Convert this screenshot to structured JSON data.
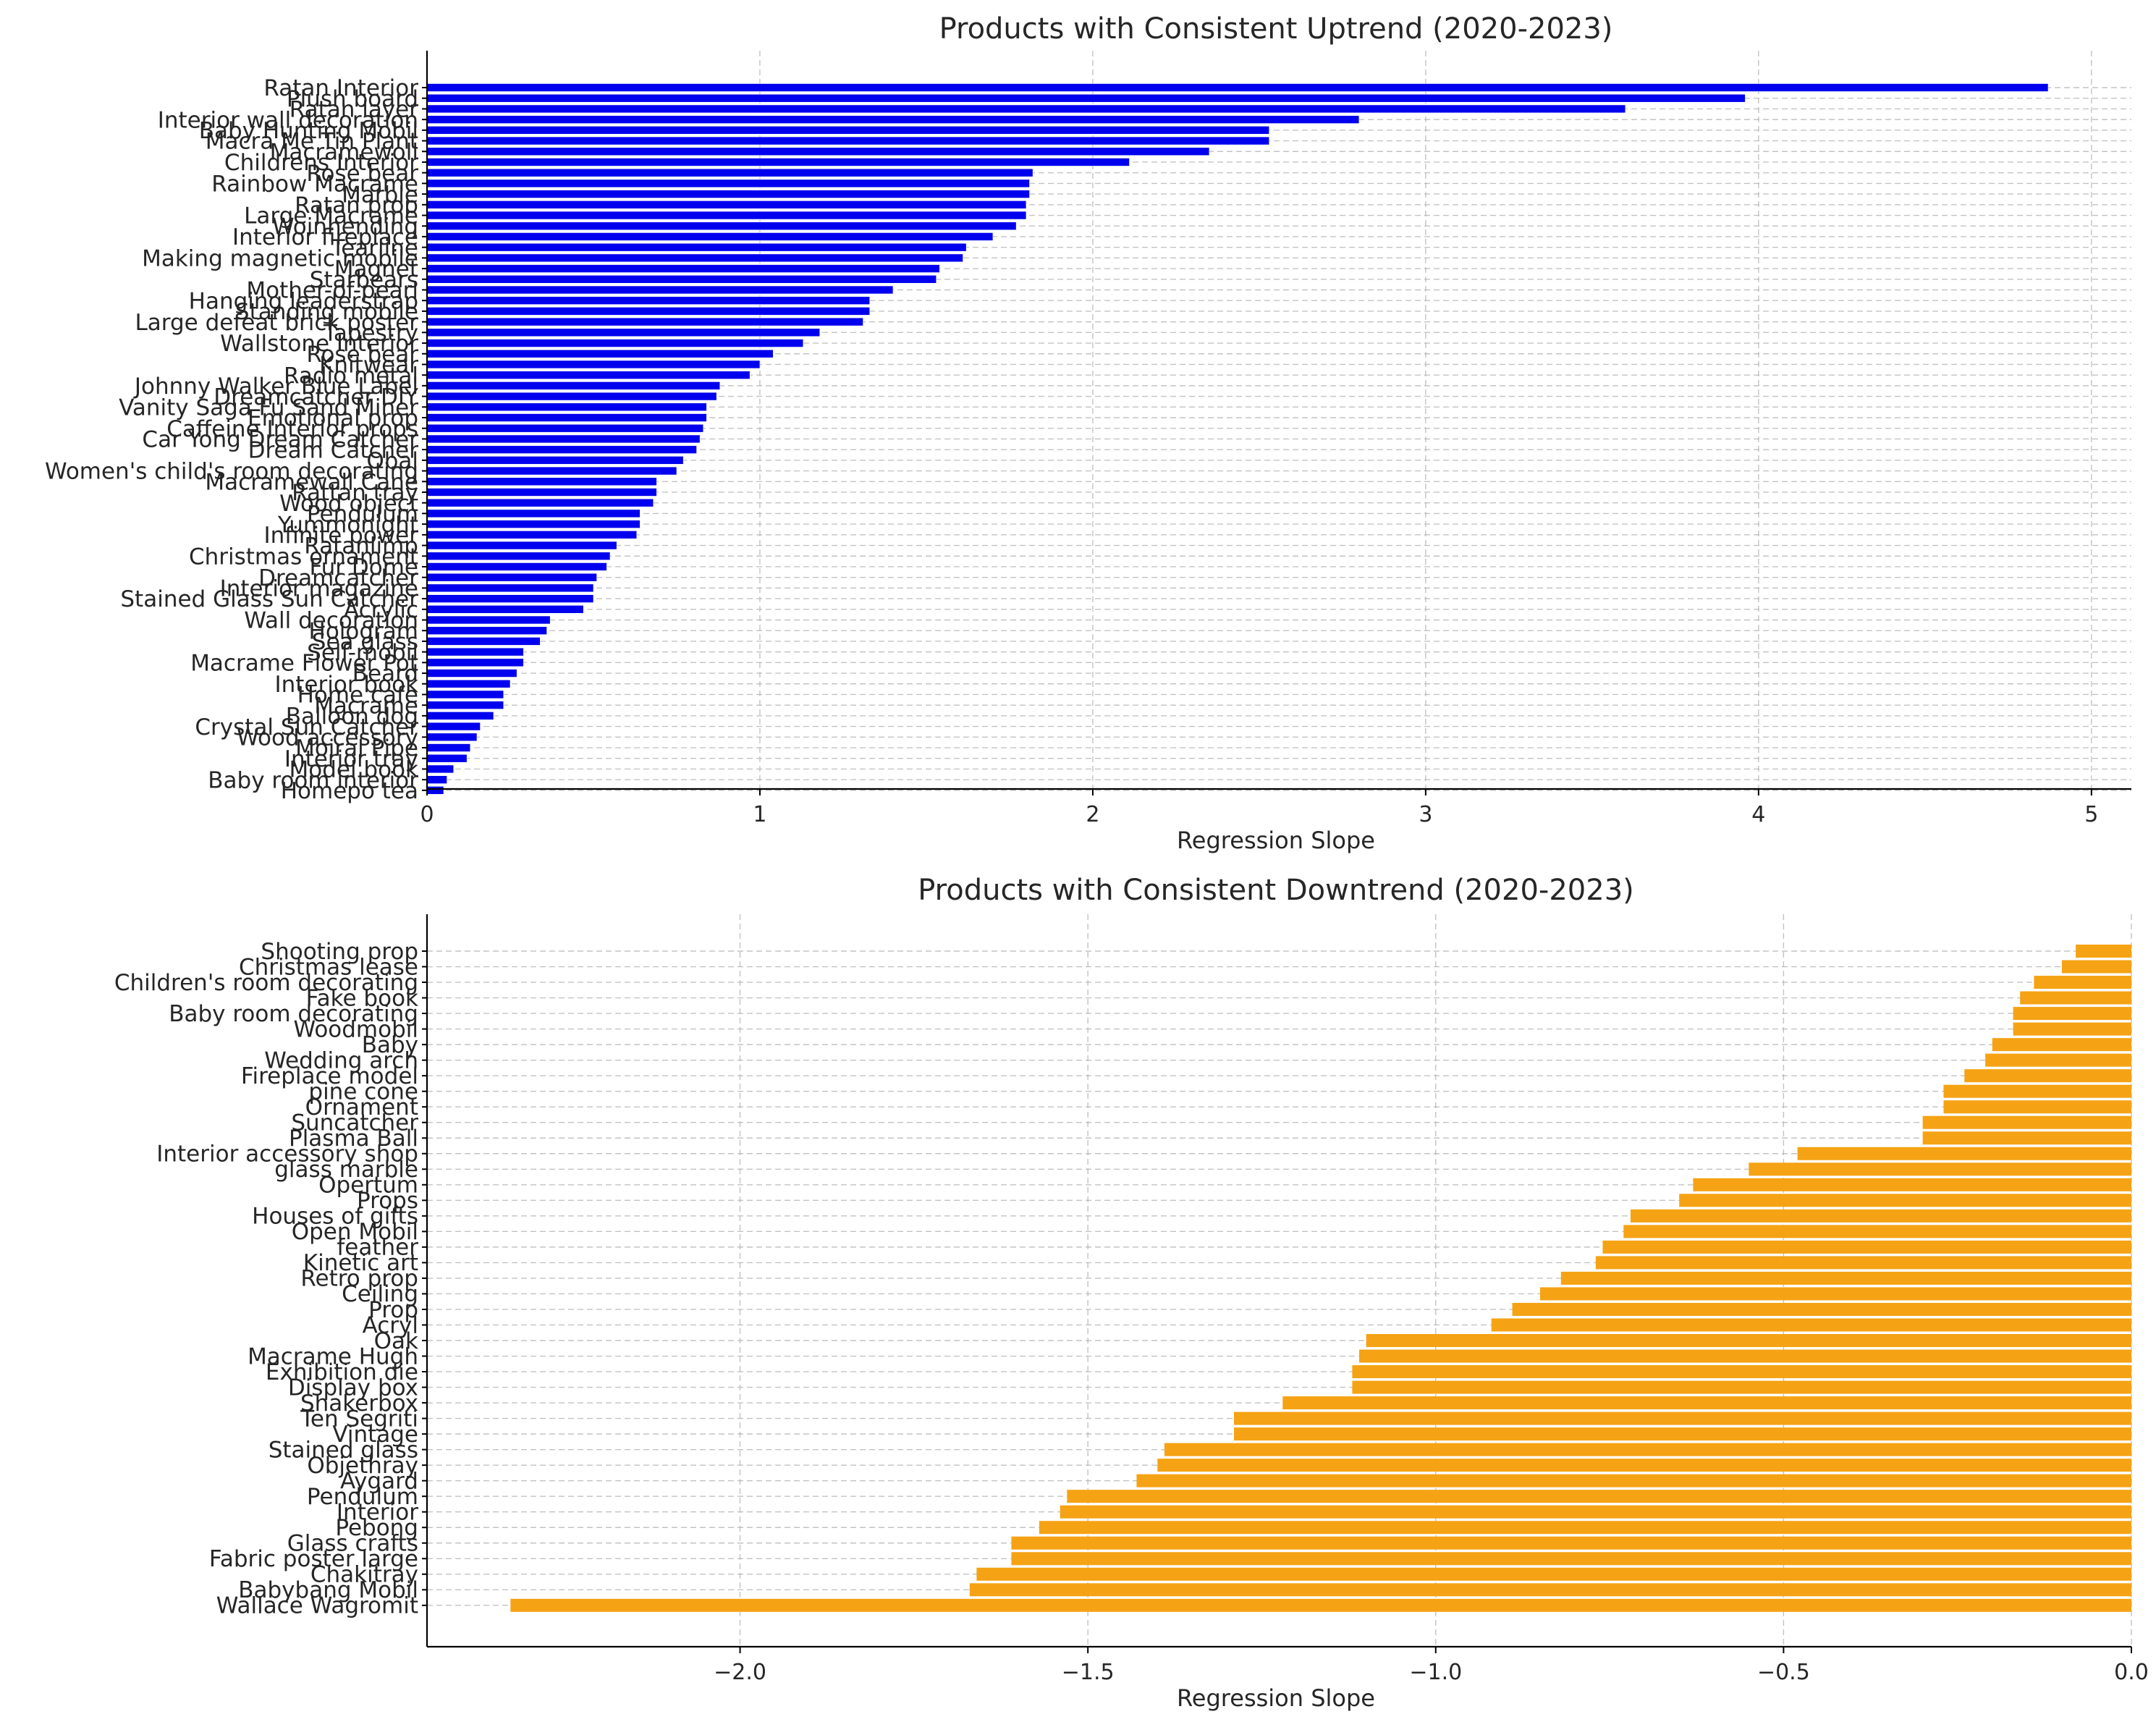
{
  "chart_data": [
    {
      "type": "bar",
      "orientation": "horizontal",
      "title": "Products with Consistent Uptrend (2020-2023)",
      "xlabel": "Regression Slope",
      "ylabel": "",
      "xlim": [
        0,
        5.12
      ],
      "xticks": [
        0,
        1,
        2,
        3,
        4,
        5
      ],
      "xtick_labels": [
        "0",
        "1",
        "2",
        "3",
        "4",
        "5"
      ],
      "grid": true,
      "bar_color": "#0000ee",
      "bar_edge_color": "#ffffff",
      "categories": [
        "Ratan Interior",
        "Plush board",
        "Ratan layer",
        "Interior wall decoration",
        "Baby Hunting Mobil",
        "Macra Me Tin Plant",
        "Macramewoll",
        "Childrens Interior",
        "Rose bear",
        "Rainbow Macrame",
        "Marble",
        "Ratan prop",
        "Large Macrame",
        "Woinhending",
        "Interior fireplace",
        "Tearline",
        "Making magnetic mobile",
        "Magnet",
        "Starbears",
        "Mother-of-pearl",
        "Hanging leaderstrap",
        "Standing mobile",
        "Large defeat brick poster",
        "Tapestry",
        "Wallstone Interior",
        "Rose bear",
        "Knitwear",
        "Radio metal",
        "Johnny Walker Blue Label",
        "Dreamcatcher DIY",
        "Vanity Saga Fu Sand Miner",
        "Emotional prop",
        "Caffeine Interior props",
        "Car Yong Dream Catcher",
        "Dream Catcher",
        "Obal",
        "Women's child's room decorating",
        "Macramewall Cane",
        "Rattan tray",
        "Wood object",
        "Pendulum",
        "Yummonight",
        "Infinite power",
        "Ratanlimp",
        "Christmas ornament",
        "Fur Dome",
        "Dreamcatcher",
        "Interior magazine",
        "Stained Glass Sun Catcher",
        "Acrylic",
        "Wall decoration",
        "Hologram",
        "Sea glass",
        "Self-mobil",
        "Macrame Flower Pot",
        "Beard",
        "Interior book",
        "Home cafe",
        "Macrame",
        "Balloon dog",
        "Crystal Sun Catcher",
        "Wood accessory",
        "Moiral Pipe",
        "Interior tray",
        "Model book",
        "Baby room interior",
        "Homepo tea"
      ],
      "values": [
        4.87,
        3.96,
        3.6,
        2.8,
        2.53,
        2.53,
        2.35,
        2.11,
        1.82,
        1.81,
        1.81,
        1.8,
        1.8,
        1.77,
        1.7,
        1.62,
        1.61,
        1.54,
        1.53,
        1.4,
        1.33,
        1.33,
        1.31,
        1.18,
        1.13,
        1.04,
        1.0,
        0.97,
        0.88,
        0.87,
        0.84,
        0.84,
        0.83,
        0.82,
        0.81,
        0.77,
        0.75,
        0.69,
        0.69,
        0.68,
        0.64,
        0.64,
        0.63,
        0.57,
        0.55,
        0.54,
        0.51,
        0.5,
        0.5,
        0.47,
        0.37,
        0.36,
        0.34,
        0.29,
        0.29,
        0.27,
        0.25,
        0.23,
        0.23,
        0.2,
        0.16,
        0.15,
        0.13,
        0.12,
        0.08,
        0.06,
        0.05
      ]
    },
    {
      "type": "bar",
      "orientation": "horizontal",
      "title": "Products with Consistent Downtrend (2020-2023)",
      "xlabel": "Regression Slope",
      "ylabel": "",
      "xlim": [
        -2.45,
        0
      ],
      "xticks": [
        -2.0,
        -1.5,
        -1.0,
        -0.5,
        0.0
      ],
      "xtick_labels": [
        "−2.0",
        "−1.5",
        "−1.0",
        "−0.5",
        "0.0"
      ],
      "grid": true,
      "bar_color": "#f5a314",
      "categories": [
        "Shooting prop",
        "Christmas lease",
        "Children's room decorating",
        "Fake book",
        "Baby room decorating",
        "Woodmobil",
        "Baby",
        "Wedding arch",
        "Fireplace model",
        "pine cone",
        "Ornament",
        "Suncatcher",
        "Plasma Ball",
        "Interior accessory shop",
        "glass marble",
        "Opertum",
        "Props",
        "Houses of gifts",
        "Open Mobil",
        "feather",
        "Kinetic art",
        "Retro prop",
        "Ceiling",
        "Prop",
        "Acryl",
        "Oak",
        "Macrame Hugh",
        "Exhibition die",
        "Display box",
        "Shakerbox",
        "Ten Segriti",
        "Vintage",
        "Stained glass",
        "Objethray",
        "Aygard",
        "Pendulum",
        "Interior",
        "Pebong",
        "Glass crafts",
        "Fabric poster large",
        "Chakitray",
        "Babybang Mobil",
        "Wallace Wagromit"
      ],
      "values": [
        -0.08,
        -0.1,
        -0.14,
        -0.16,
        -0.17,
        -0.17,
        -0.2,
        -0.21,
        -0.24,
        -0.27,
        -0.27,
        -0.3,
        -0.3,
        -0.48,
        -0.55,
        -0.63,
        -0.65,
        -0.72,
        -0.73,
        -0.76,
        -0.77,
        -0.82,
        -0.85,
        -0.89,
        -0.92,
        -1.1,
        -1.11,
        -1.12,
        -1.12,
        -1.22,
        -1.29,
        -1.29,
        -1.39,
        -1.4,
        -1.43,
        -1.53,
        -1.54,
        -1.57,
        -1.61,
        -1.61,
        -1.66,
        -1.67,
        -2.33
      ]
    }
  ]
}
